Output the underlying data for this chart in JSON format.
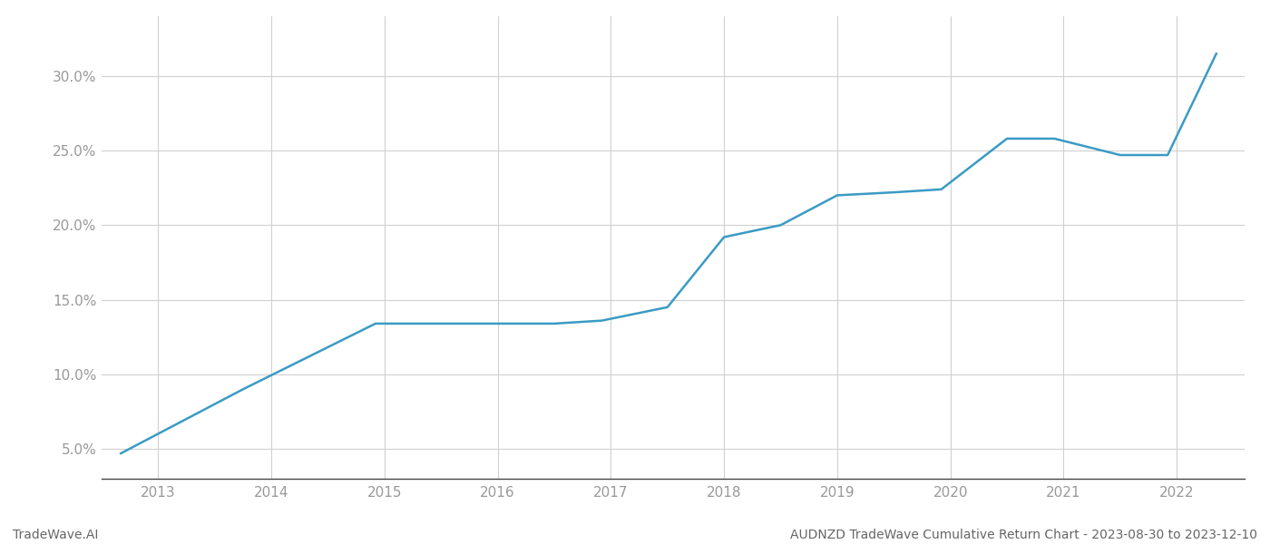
{
  "x_values": [
    2012.67,
    2013.75,
    2014.92,
    2015.5,
    2015.92,
    2016.5,
    2016.92,
    2017.5,
    2018.0,
    2018.5,
    2019.0,
    2019.5,
    2019.92,
    2020.5,
    2020.92,
    2021.5,
    2021.92,
    2022.35
  ],
  "y_values": [
    0.047,
    0.09,
    0.134,
    0.134,
    0.134,
    0.134,
    0.136,
    0.145,
    0.192,
    0.2,
    0.22,
    0.222,
    0.224,
    0.258,
    0.258,
    0.247,
    0.247,
    0.315
  ],
  "line_color": "#3a9bc4",
  "line_width": 1.8,
  "background_color": "#ffffff",
  "grid_color": "#d0d0d0",
  "x_ticks": [
    2013,
    2014,
    2015,
    2016,
    2017,
    2018,
    2019,
    2020,
    2021,
    2022
  ],
  "y_ticks": [
    0.05,
    0.1,
    0.15,
    0.2,
    0.25,
    0.3
  ],
  "y_labels": [
    "5.0%",
    "10.0%",
    "15.0%",
    "20.0%",
    "25.0%",
    "30.0%"
  ],
  "xlim": [
    2012.5,
    2022.6
  ],
  "ylim": [
    0.03,
    0.34
  ],
  "footer_left": "TradeWave.AI",
  "footer_right": "AUDNZD TradeWave Cumulative Return Chart - 2023-08-30 to 2023-12-10",
  "tick_color": "#999999",
  "label_fontsize": 11,
  "footer_fontsize": 10
}
